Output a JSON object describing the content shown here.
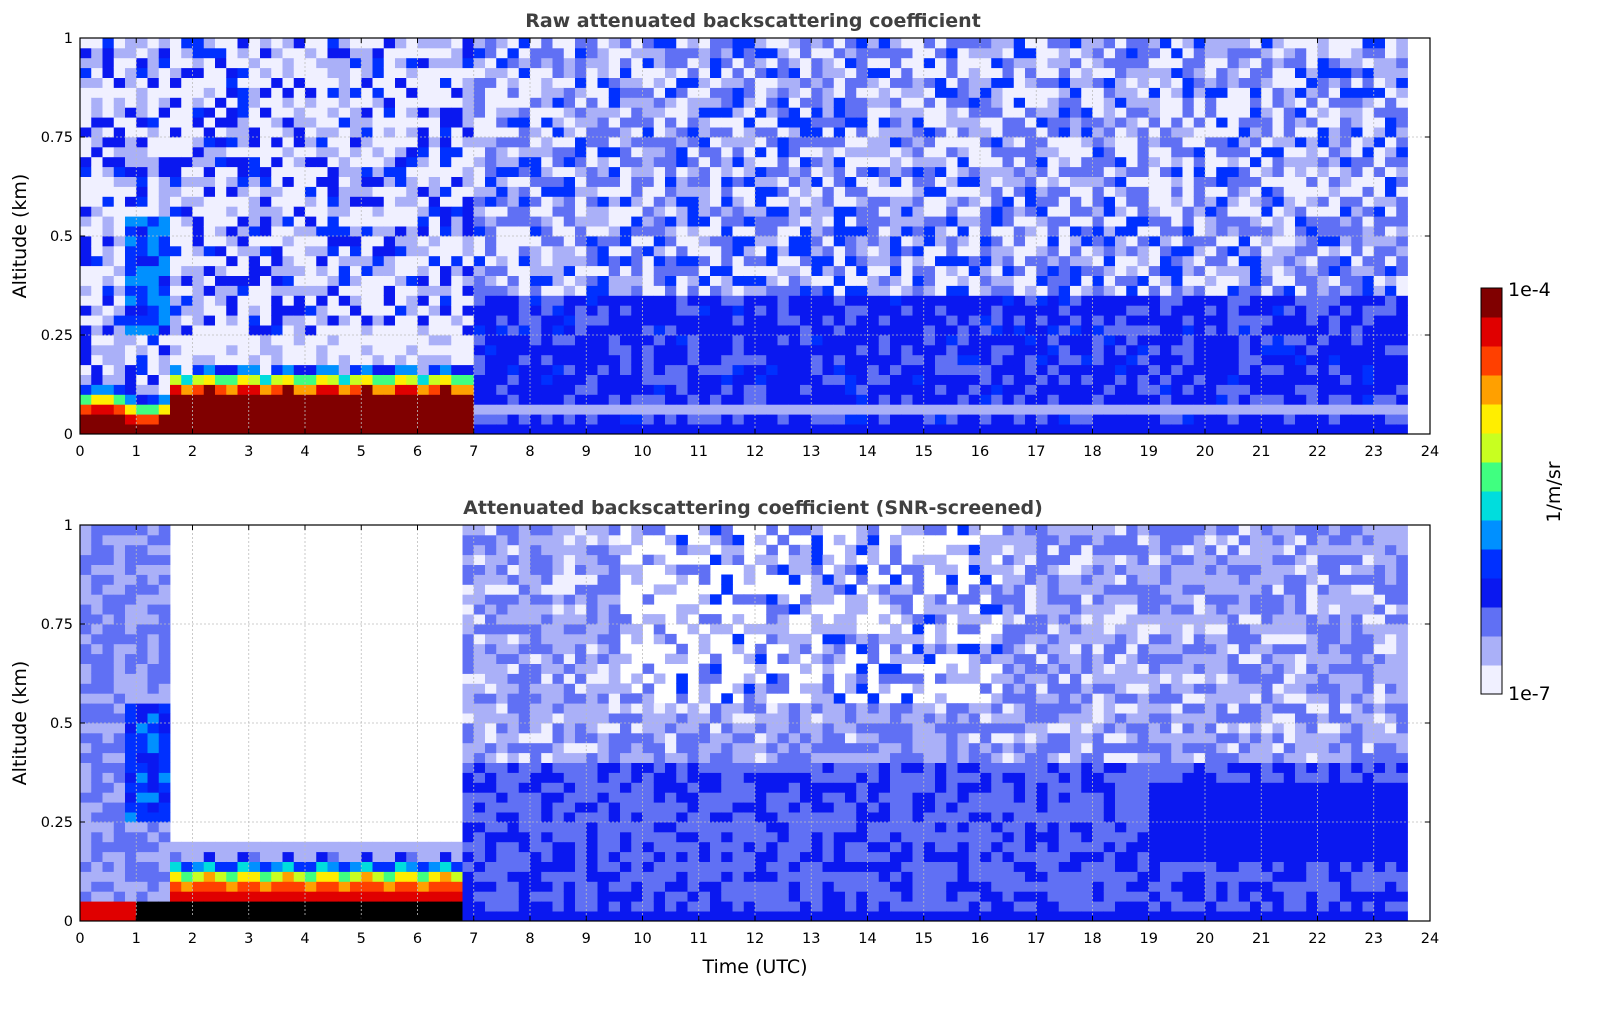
{
  "chart_data": [
    {
      "type": "heatmap",
      "title": "Raw attenuated backscattering coefficient",
      "xlabel": "",
      "ylabel": "Altitude (km)",
      "xlim": [
        0,
        24
      ],
      "ylim": [
        0,
        1
      ],
      "x_ticks": [
        "0",
        "1",
        "2",
        "3",
        "4",
        "5",
        "6",
        "7",
        "8",
        "9",
        "10",
        "11",
        "12",
        "13",
        "14",
        "15",
        "16",
        "17",
        "18",
        "19",
        "20",
        "21",
        "22",
        "23",
        "24"
      ],
      "y_ticks": [
        "0",
        "0.25",
        "0.5",
        "0.75",
        "1"
      ],
      "grid": true,
      "data_extent_hours": [
        0,
        23.6
      ],
      "features": [
        {
          "time": [
            0,
            1.7
          ],
          "altitude": [
            0,
            0.05
          ],
          "level": "1e-4 (saturated)"
        },
        {
          "time": [
            2.2,
            6.8
          ],
          "altitude": [
            0,
            0.1
          ],
          "level": "1e-4 (saturated)"
        },
        {
          "time": [
            1.6,
            6.9
          ],
          "altitude": [
            0.1,
            0.18
          ],
          "level": "gradient to 1e-7"
        },
        {
          "time": [
            0.7,
            1.6
          ],
          "altitude": [
            0.25,
            0.55
          ],
          "level": "elevated plume"
        },
        {
          "time": [
            7,
            23.6
          ],
          "altitude": [
            0,
            0.35
          ],
          "level": "approx 1e-6"
        },
        {
          "time": [
            0,
            23.6
          ],
          "altitude": [
            0.35,
            1.0
          ],
          "level": "noisy 1e-7 to 1e-6"
        }
      ]
    },
    {
      "type": "heatmap",
      "title": "Attenuated backscattering coefficient (SNR-screened)",
      "xlabel": "Time (UTC)",
      "ylabel": "Altitude (km)",
      "xlim": [
        0,
        24
      ],
      "ylim": [
        0,
        1
      ],
      "x_ticks": [
        "0",
        "1",
        "2",
        "3",
        "4",
        "5",
        "6",
        "7",
        "8",
        "9",
        "10",
        "11",
        "12",
        "13",
        "14",
        "15",
        "16",
        "17",
        "18",
        "19",
        "20",
        "21",
        "22",
        "23",
        "24"
      ],
      "y_ticks": [
        "0",
        "0.25",
        "0.5",
        "0.75",
        "1"
      ],
      "grid": true,
      "data_extent_hours": [
        0,
        23.6
      ],
      "features": [
        {
          "time": [
            0.9,
            6.8
          ],
          "altitude": [
            0,
            0.05
          ],
          "level": "screened / masked (black)"
        },
        {
          "time": [
            1.6,
            6.9
          ],
          "altitude": [
            0.05,
            0.2
          ],
          "level": "gradient to 1e-7"
        },
        {
          "time": [
            1.6,
            6.7
          ],
          "altitude": [
            0.2,
            1.0
          ],
          "level": "removed (white)"
        },
        {
          "time": [
            9.5,
            16.5
          ],
          "altitude": [
            0.55,
            1.0
          ],
          "level": "sparse 1e-6 patches"
        },
        {
          "time": [
            19,
            23.6
          ],
          "altitude": [
            0.15,
            0.35
          ],
          "level": "approx 1e-6 layer"
        }
      ]
    }
  ],
  "colorbar": {
    "label": "1/m/sr",
    "max_label": "1e-4",
    "min_label": "1e-7",
    "colormap": [
      "#f0f0ff",
      "#aab0f8",
      "#6070f4",
      "#0a18f0",
      "#0030ff",
      "#0090ff",
      "#00dddd",
      "#40ff80",
      "#c8ff20",
      "#ffee00",
      "#ffa000",
      "#ff4000",
      "#e00000",
      "#800000"
    ]
  }
}
